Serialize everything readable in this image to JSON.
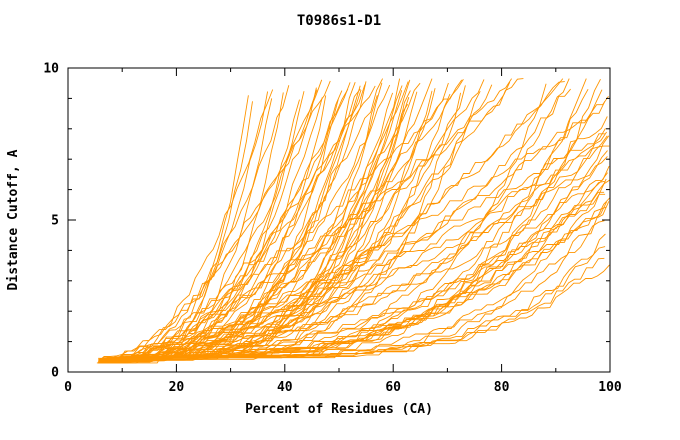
{
  "chart_data": {
    "type": "line",
    "title": "T0986s1-D1",
    "xlabel": "Percent of Residues (CA)",
    "ylabel": "Distance Cutoff, A",
    "xlim": [
      0,
      100
    ],
    "ylim": [
      0,
      10
    ],
    "xticks": {
      "major": [
        0,
        20,
        40,
        60,
        80,
        100
      ],
      "minor_step": 10
    },
    "yticks": {
      "major": [
        0,
        5,
        10
      ],
      "minor_step": 1
    },
    "line_color": "#ff9500",
    "frame_color": "#000000",
    "background": "#ffffff",
    "grid": false,
    "legend": "none",
    "series_description": "Dense bundle of ~90 overlapping per-model accuracy curves; each curve rises monotonically from a common origin near (6%, 0.3 A) toward the upper right, some reaching the 9.7 A top edge as early as 35% of residues, others staying below ~4 A until 90-100% of residues; individual model values are not resolvable at this scale",
    "series_generation": {
      "count": 92,
      "seed": 20986,
      "x_start_min": 5.2,
      "x_start_max": 9.5,
      "x_end_min": 33,
      "x_end_max": 126,
      "shape_min": 1.15,
      "shape_max": 4.6,
      "y_start": 0.3,
      "y_top": 9.65,
      "noise": 0.38
    }
  }
}
